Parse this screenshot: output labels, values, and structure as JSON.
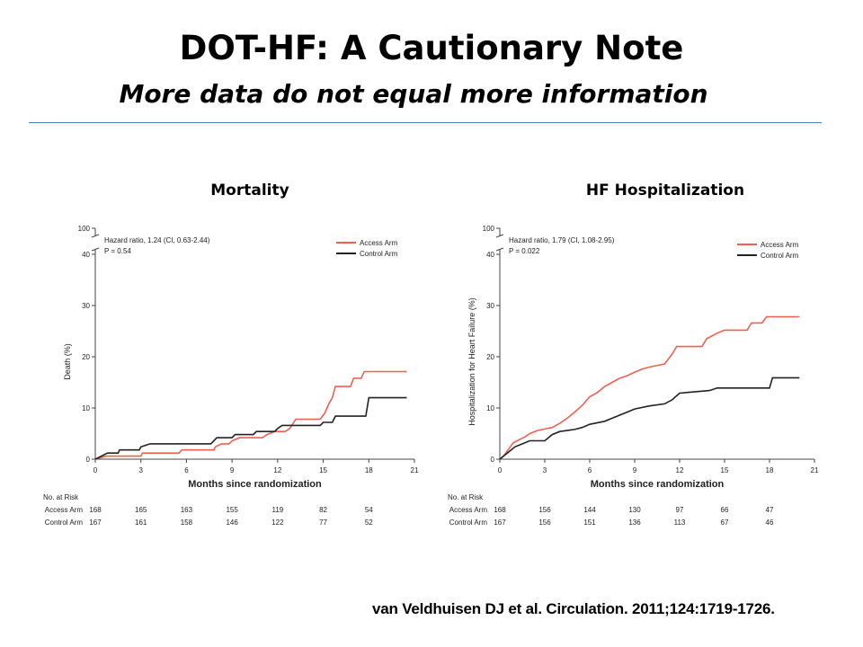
{
  "slide": {
    "title": "DOT-HF: A Cautionary Note",
    "subtitle": "More data do not equal more information",
    "citation": "van Veldhuisen DJ et al. Circulation. 2011;124:1719-1726."
  },
  "chart_data": [
    {
      "type": "line",
      "title": "Mortality",
      "xlabel": "Months since randomization",
      "ylabel": "Death (%)",
      "xlim": [
        0,
        21
      ],
      "ylim": [
        0,
        100
      ],
      "x_ticks": [
        "0",
        "3",
        "6",
        "9",
        "12",
        "15",
        "18",
        "21"
      ],
      "y_ticks": [
        "0",
        "10",
        "20",
        "30",
        "40",
        "100"
      ],
      "axis_break": true,
      "legend": "top-right",
      "annotations": [
        "Hazard ratio, 1.24 (CI, 0.63-2.44)",
        "P = 0.54"
      ],
      "series": [
        {
          "name": "Access Arm",
          "color": "#f0604e",
          "points": [
            [
              0,
              0
            ],
            [
              0.7,
              0.6
            ],
            [
              3,
              0.6
            ],
            [
              3.1,
              1.2
            ],
            [
              5.5,
              1.2
            ],
            [
              5.7,
              1.8
            ],
            [
              7.8,
              1.8
            ],
            [
              7.9,
              2.4
            ],
            [
              8.3,
              3.0
            ],
            [
              8.8,
              3.0
            ],
            [
              9.0,
              3.6
            ],
            [
              9.5,
              4.2
            ],
            [
              11,
              4.2
            ],
            [
              11.3,
              4.8
            ],
            [
              11.8,
              5.4
            ],
            [
              12.5,
              5.4
            ],
            [
              12.8,
              6.0
            ],
            [
              13.2,
              7.8
            ],
            [
              14.8,
              7.8
            ],
            [
              15.1,
              9.0
            ],
            [
              15.4,
              11.0
            ],
            [
              15.6,
              12.0
            ],
            [
              15.8,
              14.2
            ],
            [
              16.8,
              14.2
            ],
            [
              17.0,
              15.8
            ],
            [
              17.5,
              15.8
            ],
            [
              17.7,
              17.1
            ],
            [
              20.5,
              17.1
            ]
          ]
        },
        {
          "name": "Control Arm",
          "color": "#222222",
          "points": [
            [
              0,
              0
            ],
            [
              0.8,
              1.2
            ],
            [
              1.5,
              1.2
            ],
            [
              1.6,
              1.8
            ],
            [
              2.9,
              1.8
            ],
            [
              3.0,
              2.4
            ],
            [
              3.6,
              3.0
            ],
            [
              7.6,
              3.0
            ],
            [
              7.8,
              3.6
            ],
            [
              8.0,
              4.2
            ],
            [
              9.0,
              4.2
            ],
            [
              9.2,
              4.8
            ],
            [
              10.4,
              4.8
            ],
            [
              10.6,
              5.4
            ],
            [
              11.8,
              5.4
            ],
            [
              12.0,
              6.0
            ],
            [
              12.3,
              6.6
            ],
            [
              14.8,
              6.6
            ],
            [
              15.0,
              7.2
            ],
            [
              15.6,
              7.2
            ],
            [
              15.8,
              8.4
            ],
            [
              17.8,
              8.4
            ],
            [
              18.0,
              12.0
            ],
            [
              20.5,
              12.0
            ]
          ]
        }
      ],
      "risk_table": {
        "header": "No. at Risk",
        "rows": [
          {
            "label": "Access Arm",
            "values": [
              "168",
              "165",
              "163",
              "155",
              "119",
              "82",
              "54"
            ]
          },
          {
            "label": "Control Arm",
            "values": [
              "167",
              "161",
              "158",
              "146",
              "122",
              "77",
              "52"
            ]
          }
        ]
      }
    },
    {
      "type": "line",
      "title": "HF Hospitalization",
      "xlabel": "Months since randomization",
      "ylabel": "Hospitalization for Heart Failure (%)",
      "xlim": [
        0,
        21
      ],
      "ylim": [
        0,
        100
      ],
      "x_ticks": [
        "0",
        "3",
        "6",
        "9",
        "12",
        "15",
        "18",
        "21"
      ],
      "y_ticks": [
        "0",
        "10",
        "20",
        "30",
        "40",
        "100"
      ],
      "axis_break": true,
      "legend": "top-right",
      "annotations": [
        "Hazard ratio, 1.79 (CI, 1.08-2.95)",
        "P = 0.022"
      ],
      "series": [
        {
          "name": "Access Arm",
          "color": "#f0604e",
          "points": [
            [
              0,
              0
            ],
            [
              0.3,
              0.8
            ],
            [
              0.5,
              1.6
            ],
            [
              0.7,
              2.4
            ],
            [
              0.9,
              3.2
            ],
            [
              1.3,
              3.8
            ],
            [
              1.7,
              4.4
            ],
            [
              2.0,
              5.0
            ],
            [
              2.5,
              5.6
            ],
            [
              3.0,
              5.9
            ],
            [
              3.5,
              6.2
            ],
            [
              4.0,
              7.0
            ],
            [
              4.5,
              8.0
            ],
            [
              5.0,
              9.2
            ],
            [
              5.5,
              10.5
            ],
            [
              6.0,
              12.2
            ],
            [
              6.5,
              13.0
            ],
            [
              7.0,
              14.2
            ],
            [
              7.5,
              15.0
            ],
            [
              8.0,
              15.8
            ],
            [
              8.5,
              16.3
            ],
            [
              9.0,
              17.0
            ],
            [
              9.5,
              17.6
            ],
            [
              10.0,
              18.0
            ],
            [
              11.0,
              18.6
            ],
            [
              11.5,
              20.5
            ],
            [
              11.8,
              22.0
            ],
            [
              13.5,
              22.0
            ],
            [
              13.8,
              23.5
            ],
            [
              14.5,
              24.6
            ],
            [
              15.0,
              25.2
            ],
            [
              16.5,
              25.2
            ],
            [
              16.8,
              26.6
            ],
            [
              17.5,
              26.6
            ],
            [
              17.8,
              27.8
            ],
            [
              20.0,
              27.8
            ]
          ]
        },
        {
          "name": "Control Arm",
          "color": "#222222",
          "points": [
            [
              0,
              0
            ],
            [
              0.5,
              1.2
            ],
            [
              1.0,
              2.4
            ],
            [
              1.6,
              3.1
            ],
            [
              2.0,
              3.6
            ],
            [
              3.0,
              3.6
            ],
            [
              3.5,
              4.8
            ],
            [
              4.0,
              5.4
            ],
            [
              5.0,
              5.8
            ],
            [
              5.5,
              6.2
            ],
            [
              6.0,
              6.8
            ],
            [
              7.0,
              7.4
            ],
            [
              7.5,
              8.0
            ],
            [
              8.0,
              8.6
            ],
            [
              8.5,
              9.2
            ],
            [
              9.0,
              9.8
            ],
            [
              10.0,
              10.4
            ],
            [
              11.0,
              10.8
            ],
            [
              11.5,
              11.6
            ],
            [
              12.0,
              12.9
            ],
            [
              14.0,
              13.4
            ],
            [
              14.5,
              13.9
            ],
            [
              18.0,
              13.9
            ],
            [
              18.2,
              15.9
            ],
            [
              20.0,
              15.9
            ]
          ]
        }
      ],
      "risk_table": {
        "header": "No. at Risk",
        "rows": [
          {
            "label": "Access Arm",
            "values": [
              "168",
              "156",
              "144",
              "130",
              "97",
              "66",
              "47"
            ]
          },
          {
            "label": "Control Arm",
            "values": [
              "167",
              "156",
              "151",
              "136",
              "113",
              "67",
              "46"
            ]
          }
        ]
      }
    }
  ]
}
